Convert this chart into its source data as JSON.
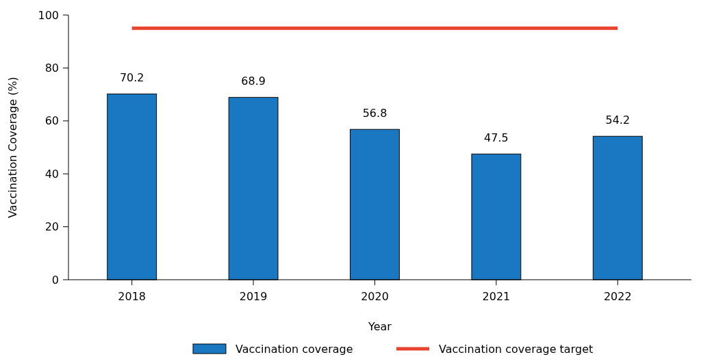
{
  "chart_data": {
    "type": "bar",
    "xlabel": "Year",
    "ylabel": "Vaccination Coverage (%)",
    "categories": [
      "2018",
      "2019",
      "2020",
      "2021",
      "2022"
    ],
    "series": [
      {
        "name": "Vaccination coverage",
        "color": "#1a78c2",
        "values": [
          70.2,
          68.9,
          56.8,
          47.5,
          54.2
        ],
        "value_labels": [
          "70.2",
          "68.9",
          "56.8",
          "47.5",
          "54.2"
        ]
      },
      {
        "name": "Vaccination coverage target",
        "type": "line",
        "color": "#e8432f",
        "values": [
          95,
          95,
          95,
          95,
          95
        ]
      }
    ],
    "ylim": [
      0,
      100
    ],
    "yticks": [
      0,
      20,
      40,
      60,
      80,
      100
    ],
    "legend": "bottom"
  }
}
